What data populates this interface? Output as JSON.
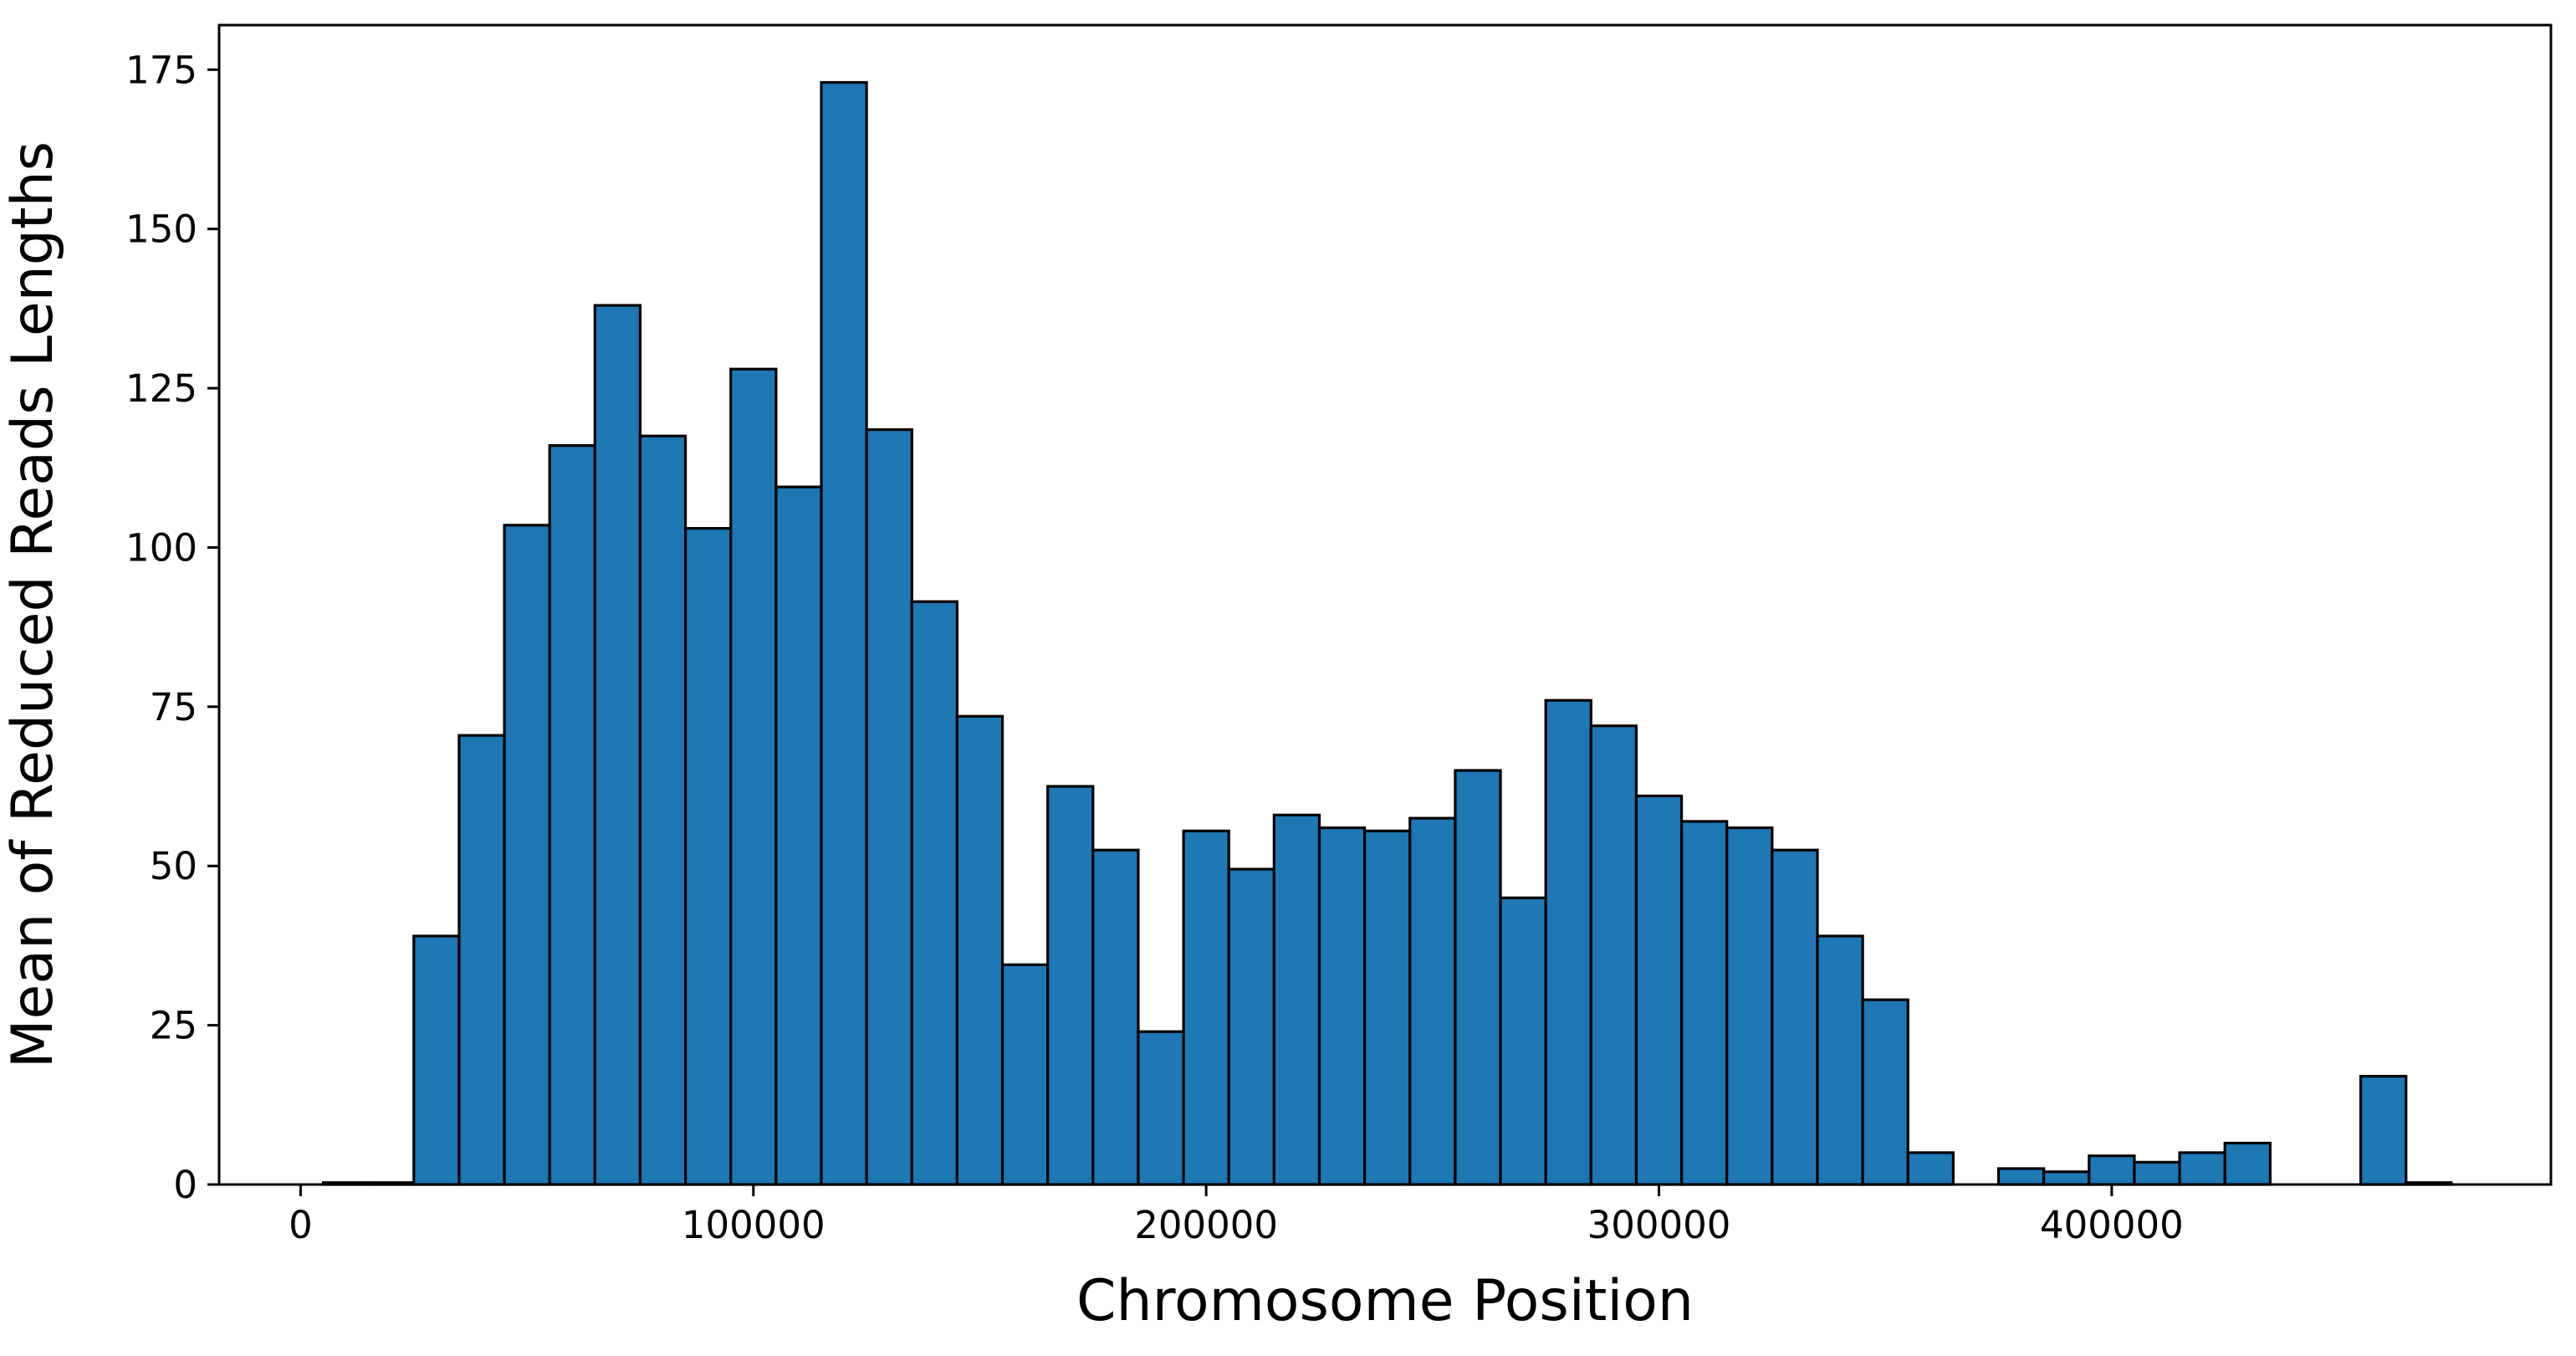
{
  "chart_data": {
    "type": "bar",
    "subtype": "histogram",
    "xlabel": "Chromosome Position",
    "ylabel": "Mean of Reduced Reads Lengths",
    "xlim": [
      -18000,
      497000
    ],
    "ylim": [
      0,
      182
    ],
    "x_ticks": [
      0,
      100000,
      200000,
      300000,
      400000
    ],
    "x_tick_labels": [
      "0",
      "100000",
      "200000",
      "300000",
      "400000"
    ],
    "y_ticks": [
      0,
      25,
      50,
      75,
      100,
      125,
      150,
      175
    ],
    "y_tick_labels": [
      "0",
      "25",
      "50",
      "75",
      "100",
      "125",
      "150",
      "175"
    ],
    "bin_start": 5000,
    "bin_width": 10000,
    "values": [
      0.3,
      0.3,
      39,
      70.5,
      103.5,
      116,
      138,
      117.5,
      103,
      128,
      109.5,
      173,
      118.5,
      91.5,
      73.5,
      34.5,
      62.5,
      52.5,
      24,
      55.5,
      49.5,
      58,
      56,
      55.5,
      57.5,
      65,
      45,
      76,
      72,
      61,
      57,
      56,
      52.5,
      39,
      29,
      5,
      0,
      2.5,
      2,
      4.5,
      3.5,
      5,
      6.5,
      0,
      0,
      17,
      0.3
    ],
    "bar_color": "#1f77b4",
    "edge_color": "#000000",
    "grid": false
  }
}
